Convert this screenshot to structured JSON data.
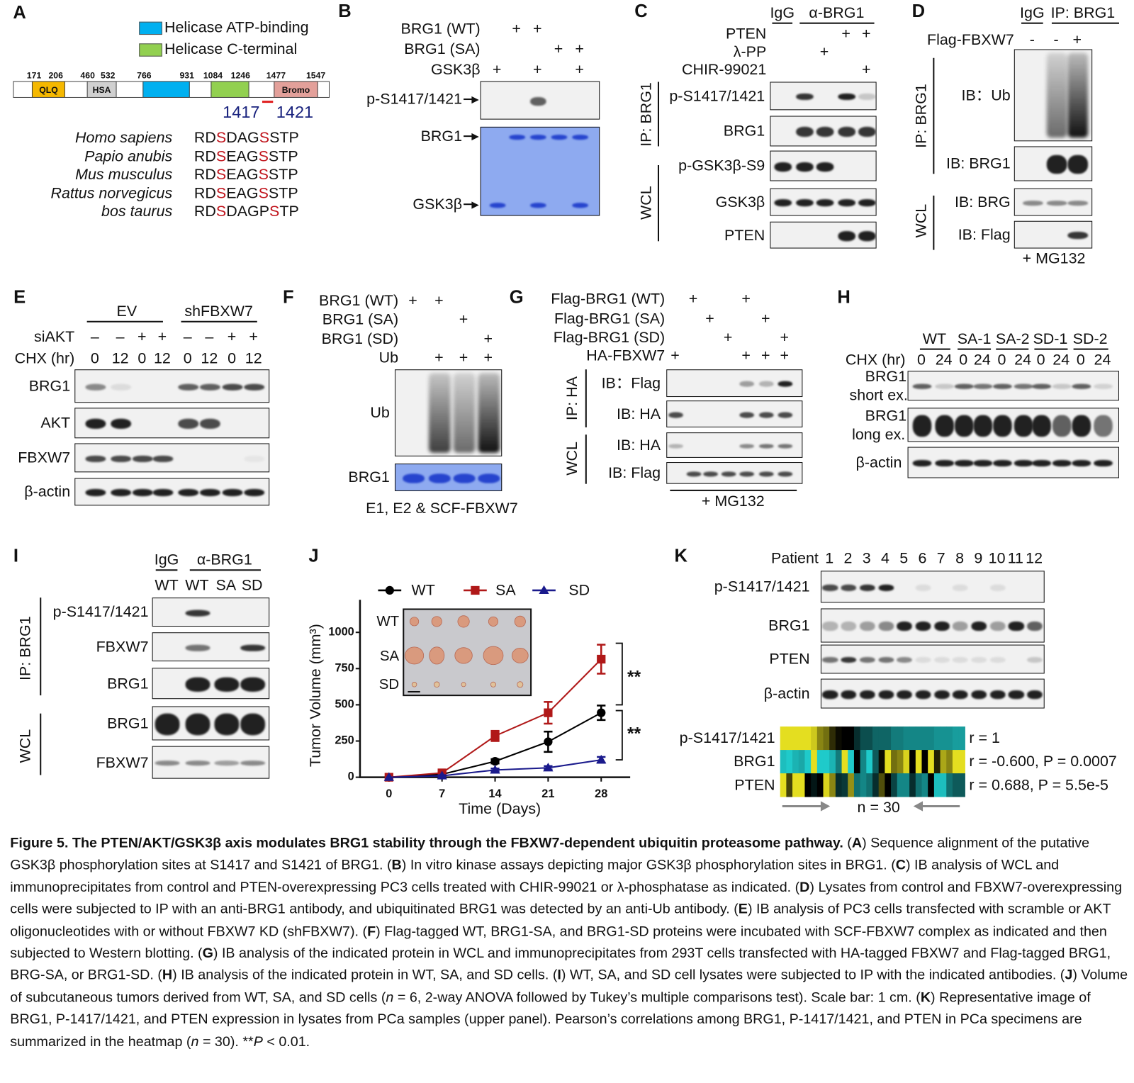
{
  "figure_title": "Figure 5",
  "panel_a": {
    "label": "A",
    "legend": [
      {
        "label": "Helicase ATP-binding",
        "color": "#00b0f0"
      },
      {
        "label": "Helicase C-terminal",
        "color": "#92d050"
      }
    ],
    "domain_ticks": [
      "171",
      "206",
      "460",
      "532",
      "766",
      "931",
      "1084",
      "1246",
      "1477",
      "1547"
    ],
    "domains": [
      {
        "name": "QLQ",
        "color": "#f5b800"
      },
      {
        "name": "HSA",
        "color": "#d0d0d0"
      },
      {
        "name": "",
        "color": "#00b0f0"
      },
      {
        "name": "",
        "color": "#92d050"
      },
      {
        "name": "Bromo",
        "color": "#e3a09a"
      }
    ],
    "site_labels": [
      "1417",
      "1421"
    ],
    "site_color": "#1a237e",
    "species": [
      {
        "name": "Homo sapiens",
        "seq": [
          "RD",
          "S",
          "DAG",
          "S",
          "STP"
        ]
      },
      {
        "name": "Papio anubis",
        "seq": [
          "RD",
          "S",
          "EAG",
          "S",
          "STP"
        ]
      },
      {
        "name": "Mus musculus",
        "seq": [
          "RD",
          "S",
          "EAG",
          "S",
          "STP"
        ]
      },
      {
        "name": "Rattus norvegicus",
        "seq": [
          "RD",
          "S",
          "EAG",
          "S",
          "STP"
        ]
      },
      {
        "name": "bos taurus",
        "seq": [
          "RD",
          "S",
          "DAGP",
          "S",
          "TP"
        ]
      }
    ]
  },
  "panel_b": {
    "label": "B",
    "conditions": [
      {
        "label": "BRG1 (WT)",
        "marks": [
          "",
          "+",
          "+",
          "",
          ""
        ]
      },
      {
        "label": "BRG1 (SA)",
        "marks": [
          "",
          "",
          "",
          "+",
          "+"
        ]
      },
      {
        "label": "GSK3β",
        "marks": [
          "+",
          "",
          "+",
          "",
          "+"
        ]
      }
    ],
    "blots": [
      {
        "label": "p-S1417/1421",
        "bands": [
          0,
          0,
          0.7,
          0,
          0
        ]
      },
      {
        "label": "BRG1",
        "bands": [
          0,
          1,
          1,
          1,
          1
        ]
      },
      {
        "label": "GSK3β",
        "bands": [
          1,
          0,
          1,
          0,
          1
        ]
      }
    ]
  },
  "panel_c": {
    "label": "C",
    "groups": [
      "IgG",
      "α-BRG1"
    ],
    "conditions": [
      {
        "label": "PTEN",
        "marks": [
          "",
          "",
          "",
          "+",
          "+"
        ]
      },
      {
        "label": "λ-PP",
        "marks": [
          "",
          "",
          "+",
          "",
          ""
        ]
      },
      {
        "label": "CHIR-99021",
        "marks": [
          "",
          "",
          "",
          "",
          "+"
        ]
      }
    ],
    "side_labels": [
      "IP: BRG1",
      "WCL"
    ],
    "blots": [
      {
        "label": "p-S1417/1421",
        "bands": [
          0,
          0.9,
          0,
          1,
          0.2
        ]
      },
      {
        "label": "BRG1",
        "bands": [
          0,
          0.9,
          0.9,
          0.9,
          0.9
        ]
      },
      {
        "label": "p-GSK3β-S9",
        "bands": [
          1,
          1,
          1,
          0,
          0
        ]
      },
      {
        "label": "GSK3β",
        "bands": [
          1,
          1,
          1,
          1,
          1
        ]
      },
      {
        "label": "PTEN",
        "bands": [
          0,
          0,
          0,
          1,
          1
        ]
      }
    ]
  },
  "panel_d": {
    "label": "D",
    "groups": [
      "IgG",
      "IP: BRG1"
    ],
    "conditions": [
      {
        "label": "Flag-FBXW7",
        "marks": [
          "-",
          "-",
          "+"
        ]
      }
    ],
    "side_labels": [
      "IP: BRG1",
      "WCL"
    ],
    "blots": [
      {
        "label": "IB：Ub",
        "bands": [
          0,
          0.6,
          1
        ]
      },
      {
        "label": "IB: BRG1",
        "bands": [
          0,
          1,
          1
        ]
      },
      {
        "label": "IB: BRG",
        "bands": [
          0.5,
          0.5,
          0.5
        ]
      },
      {
        "label": "IB: Flag",
        "bands": [
          0,
          0,
          0.9
        ]
      }
    ],
    "footnote": "+ MG132"
  },
  "panel_e": {
    "label": "E",
    "groups": [
      "EV",
      "shFBXW7"
    ],
    "conditions": [
      {
        "label": "siAKT",
        "marks": [
          "–",
          "–",
          "+",
          "+",
          "–",
          "–",
          "+",
          "+"
        ]
      },
      {
        "label": "CHX (hr)",
        "marks": [
          "0",
          "12",
          "0",
          "12",
          "0",
          "12",
          "0",
          "12"
        ]
      }
    ],
    "blots": [
      {
        "label": "BRG1",
        "bands": [
          0.5,
          0.1,
          0,
          0,
          0.7,
          0.7,
          0.8,
          0.8
        ]
      },
      {
        "label": "AKT",
        "bands": [
          1,
          1,
          0,
          0,
          0.8,
          0.8,
          0,
          0
        ]
      },
      {
        "label": "FBXW7",
        "bands": [
          0.8,
          0.8,
          0.8,
          0.8,
          0,
          0,
          0,
          0.05
        ]
      },
      {
        "label": "β-actin",
        "bands": [
          1,
          1,
          1,
          1,
          1,
          1,
          1,
          1
        ]
      }
    ]
  },
  "panel_f": {
    "label": "F",
    "conditions": [
      {
        "label": "BRG1 (WT)",
        "marks": [
          "+",
          "+",
          "",
          ""
        ]
      },
      {
        "label": "BRG1 (SA)",
        "marks": [
          "",
          "",
          "+",
          ""
        ]
      },
      {
        "label": "BRG1 (SD)",
        "marks": [
          "",
          "",
          "",
          "+"
        ]
      },
      {
        "label": "Ub",
        "marks": [
          "",
          "+",
          "+",
          "+"
        ]
      }
    ],
    "blots": [
      {
        "label": "Ub",
        "bands": [
          0,
          0.8,
          0.6,
          1
        ]
      },
      {
        "label": "BRG1",
        "bands": [
          1,
          1,
          1,
          1
        ]
      }
    ],
    "footnote": "E1, E2 & SCF-FBXW7"
  },
  "panel_g": {
    "label": "G",
    "conditions": [
      {
        "label": "Flag-BRG1 (WT)",
        "marks": [
          "",
          "+",
          "",
          "",
          "+",
          "",
          ""
        ]
      },
      {
        "label": "Flag-BRG1 (SA)",
        "marks": [
          "",
          "",
          "+",
          "",
          "",
          "+",
          ""
        ]
      },
      {
        "label": "Flag-BRG1 (SD)",
        "marks": [
          "",
          "",
          "",
          "+",
          "",
          "",
          "+"
        ]
      },
      {
        "label": "HA-FBXW7",
        "marks": [
          "+",
          "",
          "",
          "",
          "+",
          "+",
          "+"
        ]
      }
    ],
    "side_labels": [
      "IP: HA",
      "WCL"
    ],
    "blots": [
      {
        "label": "IB：Flag",
        "bands": [
          0,
          0,
          0,
          0,
          0.4,
          0.3,
          1
        ]
      },
      {
        "label": "IB: HA",
        "bands": [
          0.8,
          0,
          0,
          0,
          0.8,
          0.8,
          0.8
        ]
      },
      {
        "label": "IB: HA",
        "bands": [
          0.3,
          0,
          0,
          0,
          0.5,
          0.6,
          0.6
        ]
      },
      {
        "label": "IB: Flag",
        "bands": [
          0,
          0.8,
          0.8,
          0.8,
          0.8,
          0.8,
          0.8
        ]
      }
    ],
    "footnote": "+ MG132"
  },
  "panel_h": {
    "label": "H",
    "groups": [
      "WT",
      "SA-1",
      "SA-2",
      "SD-1",
      "SD-2"
    ],
    "conditions": [
      {
        "label": "CHX (hr)",
        "marks": [
          "0",
          "24",
          "0",
          "24",
          "0",
          "24",
          "0",
          "24",
          "0",
          "24"
        ]
      }
    ],
    "blots": [
      {
        "label": "BRG1",
        "sublabel": "short ex.",
        "bands": [
          0.7,
          0.2,
          0.7,
          0.6,
          0.7,
          0.6,
          0.7,
          0.2,
          0.7,
          0.15
        ]
      },
      {
        "label": "BRG1",
        "sublabel": "long ex.",
        "bands": [
          1,
          1,
          1,
          1,
          1,
          1,
          1,
          0.7,
          1,
          0.6
        ]
      },
      {
        "label": "β-actin",
        "bands": [
          1,
          1,
          1,
          1,
          1,
          1,
          1,
          1,
          1,
          1
        ]
      }
    ]
  },
  "panel_i": {
    "label": "I",
    "groups": [
      "IgG",
      "α-BRG1"
    ],
    "lanes": [
      "WT",
      "WT",
      "SA",
      "SD"
    ],
    "side_labels": [
      "IP: BRG1",
      "WCL"
    ],
    "blots": [
      {
        "label": "p-S1417/1421",
        "bands": [
          0,
          0.9,
          0,
          0
        ]
      },
      {
        "label": "FBXW7",
        "bands": [
          0,
          0.6,
          0,
          0.9
        ]
      },
      {
        "label": "BRG1",
        "bands": [
          0,
          1,
          1,
          1
        ]
      },
      {
        "label": "BRG1",
        "bands": [
          1,
          1,
          1,
          1
        ]
      },
      {
        "label": "FBXW7",
        "bands": [
          0.5,
          0.5,
          0.4,
          0.5
        ]
      }
    ]
  },
  "panel_j": {
    "label": "J",
    "inset_labels": [
      "WT",
      "SA",
      "SD"
    ],
    "significance": [
      "**",
      "**"
    ]
  },
  "chart_data": {
    "type": "line",
    "title": "",
    "xlabel": "Time (Days)",
    "ylabel": "Tumor Volume (mm³)",
    "x": [
      0,
      7,
      14,
      21,
      28
    ],
    "x_ticks": [
      "0",
      "7",
      "14",
      "21",
      "28"
    ],
    "y_ticks": [
      "0",
      "250",
      "500",
      "750",
      "1000"
    ],
    "ylim": [
      0,
      1150
    ],
    "xlim": [
      0,
      31
    ],
    "legend_position": "top",
    "grid": false,
    "series": [
      {
        "name": "WT",
        "color": "#000000",
        "marker": "circle",
        "values": [
          0,
          20,
          110,
          245,
          445
        ],
        "errors": [
          0,
          8,
          15,
          70,
          50
        ]
      },
      {
        "name": "SA",
        "color": "#b01818",
        "marker": "square",
        "values": [
          0,
          30,
          285,
          445,
          815
        ],
        "errors": [
          0,
          8,
          35,
          75,
          100
        ]
      },
      {
        "name": "SD",
        "color": "#1a1a8c",
        "marker": "triangle",
        "values": [
          0,
          10,
          50,
          65,
          120
        ],
        "errors": [
          0,
          4,
          10,
          12,
          20
        ]
      }
    ]
  },
  "panel_k": {
    "label": "K",
    "lane_header": "Patient",
    "lanes": [
      "1",
      "2",
      "3",
      "4",
      "5",
      "6",
      "7",
      "8",
      "9",
      "10",
      "11",
      "12"
    ],
    "blots": [
      {
        "label": "p-S1417/1421",
        "bands": [
          0.8,
          0.8,
          0.9,
          1,
          0,
          0.1,
          0,
          0.1,
          0,
          0.1,
          0,
          0
        ]
      },
      {
        "label": "BRG1",
        "bands": [
          0.3,
          0.3,
          0.4,
          0.5,
          1,
          1,
          1,
          0.4,
          1,
          0.4,
          1,
          0.7
        ]
      },
      {
        "label": "PTEN",
        "bands": [
          0.6,
          0.9,
          0.6,
          0.6,
          0.5,
          0.1,
          0.1,
          0.1,
          0.1,
          0.1,
          0,
          0.2
        ]
      },
      {
        "label": "β-actin",
        "bands": [
          1,
          1,
          1,
          1,
          1,
          1,
          1,
          1,
          1,
          1,
          1,
          1
        ]
      }
    ],
    "heatmap": {
      "colors": {
        "high": "#e4de20",
        "mid": "#000000",
        "low": "#22e0e0"
      },
      "rows": [
        {
          "label": "p-S1417/1421",
          "stat": "r = 1",
          "values": [
            1,
            1,
            1,
            1,
            1,
            0.9,
            0.6,
            0.5,
            0.2,
            0.05,
            0,
            0,
            -0.2,
            -0.35,
            -0.35,
            -0.45,
            -0.45,
            -0.45,
            -0.55,
            -0.55,
            -0.6,
            -0.6,
            -0.6,
            -0.6,
            -0.6,
            -0.65,
            -0.65,
            -0.65,
            -0.7,
            -0.7
          ]
        },
        {
          "label": "BRG1",
          "stat": "r = -0.600, P = 0.0007",
          "values": [
            -0.85,
            -0.9,
            -0.8,
            -0.75,
            -0.9,
            1,
            -0.9,
            -0.9,
            -0.8,
            -0.55,
            1,
            -0.9,
            0,
            -0.6,
            -0.9,
            -0.4,
            0.05,
            1,
            0.5,
            0.6,
            0.95,
            0,
            1,
            0,
            1,
            0.15,
            0.75,
            0.6,
            1,
            1
          ]
        },
        {
          "label": "PTEN",
          "stat": "r = 0.688, P = 5.5e-5",
          "values": [
            1,
            0.3,
            1,
            1,
            0,
            -0.1,
            0,
            0.95,
            0.6,
            -0.2,
            -0.25,
            0.65,
            -0.5,
            -0.6,
            -0.5,
            -0.2,
            0.35,
            0,
            -0.3,
            -0.6,
            -0.6,
            -0.2,
            -0.5,
            -0.6,
            0,
            -0.85,
            -0.85,
            -0.5,
            -0.4,
            -0.4
          ]
        }
      ],
      "n_label": "n = 30"
    }
  },
  "caption": [
    {
      "t": "Figure 5. The PTEN/AKT/GSK3β axis modulates BRG1 stability through the FBXW7-dependent ubiquitin proteasome pathway.",
      "s": "b"
    },
    {
      "t": " (",
      "s": ""
    },
    {
      "t": "A",
      "s": "b"
    },
    {
      "t": ") Sequence alignment of the putative GSK3β phosphorylation sites at S1417 and S1421 of BRG1. (",
      "s": ""
    },
    {
      "t": "B",
      "s": "b"
    },
    {
      "t": ") In vitro kinase assays depicting major GSK3β phosphorylation sites in BRG1. (",
      "s": ""
    },
    {
      "t": "C",
      "s": "b"
    },
    {
      "t": ") IB analysis of WCL and immunoprecipitates from control and PTEN-overexpressing PC3 cells treated with CHIR-99021 or λ-phosphatase as indicated. (",
      "s": ""
    },
    {
      "t": "D",
      "s": "b"
    },
    {
      "t": ") Lysates from control and FBXW7-overexpressing cells were subjected to IP with an anti-BRG1 antibody, and ubiquitinated BRG1 was detected by an anti-Ub antibody. (",
      "s": ""
    },
    {
      "t": "E",
      "s": "b"
    },
    {
      "t": ") IB analysis of PC3 cells transfected with scramble or AKT oligonucleotides with or without FBXW7 KD (shFBXW7). (",
      "s": ""
    },
    {
      "t": "F",
      "s": "b"
    },
    {
      "t": ") Flag-tagged WT, BRG1-SA, and BRG1-SD proteins were incubated with SCF-FBXW7 complex as indicated and then subjected to Western blotting. (",
      "s": ""
    },
    {
      "t": "G",
      "s": "b"
    },
    {
      "t": ") IB analysis of the indicated protein in WCL and immunoprecipitates from 293T cells transfected with HA-tagged FBXW7 and Flag-tagged BRG1, BRG-SA, or BRG1-SD. (",
      "s": ""
    },
    {
      "t": "H",
      "s": "b"
    },
    {
      "t": ") IB analysis of the indicated protein in WT, SA, and SD cells. (",
      "s": ""
    },
    {
      "t": "I",
      "s": "b"
    },
    {
      "t": ") WT, SA, and SD cell lysates were subjected to IP with the indicated antibodies. (",
      "s": ""
    },
    {
      "t": "J",
      "s": "b"
    },
    {
      "t": ") Volume of subcutaneous tumors derived from WT, SA, and SD cells (",
      "s": ""
    },
    {
      "t": "n",
      "s": "i"
    },
    {
      "t": " = 6, 2-way ANOVA followed by Tukey’s multiple comparisons test). Scale bar: 1 cm. (",
      "s": ""
    },
    {
      "t": "K",
      "s": "b"
    },
    {
      "t": ") Representative image of BRG1, P-1417/1421, and PTEN expression in lysates from PCa samples (upper panel). Pearson’s correlations among BRG1, P-1417/1421, and PTEN in PCa specimens are summarized in the heatmap (",
      "s": ""
    },
    {
      "t": "n",
      "s": "i"
    },
    {
      "t": " = 30). **",
      "s": ""
    },
    {
      "t": "P",
      "s": "i"
    },
    {
      "t": " < 0.01.",
      "s": ""
    }
  ]
}
